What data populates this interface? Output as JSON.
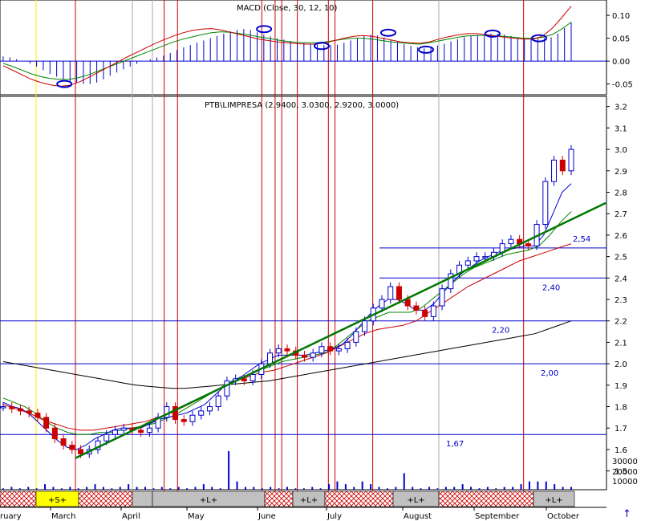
{
  "chart_data": [
    {
      "type": "bar",
      "panel": "macd",
      "title": "MACD (Close, 30, 12, 10)",
      "ylim": [
        -0.07,
        0.13
      ],
      "y_ticks": [
        0.1,
        0.05,
        0.0,
        -0.05
      ],
      "y_tick_labels": [
        "0.10",
        "0.05",
        "0.00",
        "-0.05"
      ],
      "series": [
        {
          "name": "MACD histogram",
          "color": "#0000cc"
        },
        {
          "name": "signal",
          "color": "#008800"
        },
        {
          "name": "MACD",
          "color": "#cc0000"
        }
      ],
      "histogram": [
        0.01,
        0.008,
        0.004,
        0.0,
        -0.005,
        -0.012,
        -0.02,
        -0.028,
        -0.034,
        -0.04,
        -0.045,
        -0.048,
        -0.05,
        -0.05,
        -0.047,
        -0.04,
        -0.032,
        -0.025,
        -0.018,
        -0.012,
        -0.006,
        0.0,
        0.004,
        0.008,
        0.012,
        0.018,
        0.024,
        0.03,
        0.035,
        0.04,
        0.045,
        0.05,
        0.055,
        0.06,
        0.065,
        0.068,
        0.07,
        0.068,
        0.063,
        0.058,
        0.054,
        0.05,
        0.047,
        0.044,
        0.042,
        0.04,
        0.038,
        0.036,
        0.035,
        0.035,
        0.036,
        0.04,
        0.045,
        0.05,
        0.055,
        0.058,
        0.056,
        0.052,
        0.047,
        0.042,
        0.037,
        0.033,
        0.03,
        0.028,
        0.03,
        0.034,
        0.038,
        0.043,
        0.048,
        0.052,
        0.055,
        0.057,
        0.058,
        0.06,
        0.06,
        0.058,
        0.055,
        0.052,
        0.05,
        0.05,
        0.05,
        0.05,
        0.052,
        0.06,
        0.072,
        0.085
      ],
      "signal": [
        -0.005,
        -0.012,
        -0.02,
        -0.028,
        -0.034,
        -0.038,
        -0.04,
        -0.04,
        -0.036,
        -0.03,
        -0.022,
        -0.014,
        -0.006,
        0.002,
        0.01,
        0.018,
        0.026,
        0.034,
        0.042,
        0.048,
        0.053,
        0.058,
        0.062,
        0.064,
        0.063,
        0.06,
        0.057,
        0.053,
        0.05,
        0.046,
        0.043,
        0.041,
        0.04,
        0.04,
        0.042,
        0.045,
        0.048,
        0.05,
        0.05,
        0.048,
        0.045,
        0.042,
        0.04,
        0.038,
        0.037,
        0.04,
        0.044,
        0.048,
        0.052,
        0.055,
        0.056,
        0.056,
        0.055,
        0.054,
        0.052,
        0.05,
        0.05,
        0.052,
        0.058,
        0.07,
        0.085
      ],
      "macd": [
        -0.01,
        -0.02,
        -0.03,
        -0.04,
        -0.047,
        -0.052,
        -0.055,
        -0.053,
        -0.046,
        -0.036,
        -0.025,
        -0.014,
        -0.003,
        0.008,
        0.018,
        0.028,
        0.038,
        0.047,
        0.055,
        0.062,
        0.067,
        0.07,
        0.071,
        0.068,
        0.063,
        0.058,
        0.053,
        0.048,
        0.045,
        0.042,
        0.04,
        0.038,
        0.037,
        0.037,
        0.04,
        0.045,
        0.05,
        0.054,
        0.056,
        0.054,
        0.05,
        0.046,
        0.042,
        0.04,
        0.039,
        0.042,
        0.048,
        0.053,
        0.057,
        0.06,
        0.06,
        0.058,
        0.055,
        0.052,
        0.05,
        0.048,
        0.048,
        0.055,
        0.072,
        0.095,
        0.12
      ],
      "marked_points": [
        {
          "date": "Mar 01",
          "y": -0.05
        },
        {
          "date": "May 30",
          "y": 0.07
        },
        {
          "date": "Jun 25",
          "y": 0.033
        },
        {
          "date": "Jul 25",
          "y": 0.062
        },
        {
          "date": "Aug 11",
          "y": 0.025
        },
        {
          "date": "Sep 10",
          "y": 0.06
        },
        {
          "date": "Oct 01",
          "y": 0.05
        }
      ]
    },
    {
      "type": "line",
      "panel": "price",
      "title": "PTB\\LIMPRESA (2.9400, 3.0300, 2.9200, 3.0000)",
      "ylim": [
        1.42,
        3.24
      ],
      "y_ticks": [
        3.2,
        3.1,
        3.0,
        2.9,
        2.8,
        2.7,
        2.6,
        2.5,
        2.4,
        2.3,
        2.2,
        2.1,
        2.0,
        1.9,
        1.8,
        1.7,
        1.6,
        1.5
      ],
      "y_tick_labels": [
        "3.2",
        "3.1",
        "3.0",
        "2.9",
        "2.8",
        "2.7",
        "2.6",
        "2.5",
        "2.4",
        "2.3",
        "2.2",
        "2.1",
        "2.0",
        "1.9",
        "1.8",
        "1.7",
        "1.6",
        "1.5"
      ],
      "x_labels": [
        "ruary",
        "March",
        "April",
        "May",
        "June",
        "July",
        "August",
        "September",
        "October"
      ],
      "close": [
        1.8,
        1.79,
        1.78,
        1.77,
        1.75,
        1.7,
        1.65,
        1.62,
        1.6,
        1.58,
        1.6,
        1.64,
        1.67,
        1.69,
        1.7,
        1.69,
        1.68,
        1.7,
        1.75,
        1.8,
        1.74,
        1.73,
        1.76,
        1.78,
        1.8,
        1.85,
        1.92,
        1.93,
        1.92,
        1.95,
        2.0,
        2.05,
        2.07,
        2.06,
        2.04,
        2.03,
        2.05,
        2.08,
        2.06,
        2.07,
        2.1,
        2.15,
        2.2,
        2.26,
        2.3,
        2.36,
        2.3,
        2.27,
        2.25,
        2.22,
        2.27,
        2.35,
        2.42,
        2.46,
        2.48,
        2.5,
        2.5,
        2.52,
        2.56,
        2.58,
        2.56,
        2.55,
        2.65,
        2.85,
        2.95,
        2.9,
        3.0
      ],
      "ma_fast": [
        1.82,
        1.8,
        1.79,
        1.76,
        1.72,
        1.68,
        1.64,
        1.61,
        1.6,
        1.62,
        1.65,
        1.67,
        1.69,
        1.7,
        1.7,
        1.7,
        1.72,
        1.74,
        1.75,
        1.76,
        1.77,
        1.79,
        1.81,
        1.85,
        1.89,
        1.92,
        1.94,
        1.97,
        2.0,
        2.02,
        2.04,
        2.04,
        2.04,
        2.04,
        2.05,
        2.06,
        2.07,
        2.09,
        2.13,
        2.18,
        2.23,
        2.27,
        2.3,
        2.3,
        2.28,
        2.25,
        2.25,
        2.28,
        2.33,
        2.38,
        2.42,
        2.45,
        2.48,
        2.5,
        2.52,
        2.53,
        2.54,
        2.55,
        2.55,
        2.6,
        2.7,
        2.8,
        2.84
      ],
      "ma_mid": [
        1.84,
        1.82,
        1.8,
        1.77,
        1.73,
        1.7,
        1.68,
        1.67,
        1.67,
        1.68,
        1.68,
        1.69,
        1.7,
        1.71,
        1.72,
        1.74,
        1.76,
        1.79,
        1.82,
        1.85,
        1.88,
        1.91,
        1.93,
        1.95,
        1.97,
        1.99,
        2.01,
        2.02,
        2.03,
        2.04,
        2.05,
        2.08,
        2.12,
        2.16,
        2.2,
        2.22,
        2.24,
        2.24,
        2.24,
        2.26,
        2.3,
        2.34,
        2.38,
        2.42,
        2.45,
        2.47,
        2.49,
        2.51,
        2.52,
        2.53,
        2.55,
        2.6,
        2.66,
        2.71
      ],
      "ma_slow": [
        1.81,
        1.79,
        1.77,
        1.74,
        1.72,
        1.7,
        1.69,
        1.69,
        1.7,
        1.71,
        1.72,
        1.73,
        1.75,
        1.77,
        1.8,
        1.83,
        1.86,
        1.89,
        1.92,
        1.94,
        1.96,
        1.97,
        1.99,
        2.01,
        2.03,
        2.05,
        2.08,
        2.11,
        2.14,
        2.16,
        2.17,
        2.18,
        2.2,
        2.24,
        2.28,
        2.32,
        2.36,
        2.39,
        2.42,
        2.45,
        2.48,
        2.5,
        2.52,
        2.54,
        2.56
      ],
      "ma_long": [
        2.01,
        2.0,
        1.99,
        1.98,
        1.97,
        1.96,
        1.95,
        1.94,
        1.93,
        1.92,
        1.91,
        1.9,
        1.895,
        1.89,
        1.885,
        1.885,
        1.89,
        1.895,
        1.9,
        1.905,
        1.91,
        1.915,
        1.92,
        1.93,
        1.94,
        1.95,
        1.96,
        1.97,
        1.98,
        1.99,
        2.0,
        2.01,
        2.02,
        2.03,
        2.04,
        2.05,
        2.06,
        2.07,
        2.08,
        2.09,
        2.1,
        2.11,
        2.12,
        2.13,
        2.14,
        2.16,
        2.18,
        2.2
      ],
      "trendline": {
        "from": {
          "date": "Mar 06",
          "y": 1.56
        },
        "to": {
          "date": "Oct 31",
          "y": 2.75
        },
        "color": "#007700"
      },
      "horizontal_levels": [
        {
          "value": 2.54,
          "label": "2,54"
        },
        {
          "value": 2.4,
          "label": "2,40"
        },
        {
          "value": 2.2,
          "label": "2,20"
        },
        {
          "value": 2.0,
          "label": "2,00"
        },
        {
          "value": 1.67,
          "label": "1,67"
        }
      ]
    },
    {
      "type": "bar",
      "panel": "volume",
      "y_tick_labels": [
        "30000",
        "20000",
        "10000"
      ],
      "values": [
        0.5,
        1,
        0.5,
        1,
        0.5,
        2,
        1,
        0.5,
        1,
        0.5,
        1,
        2,
        1,
        0.5,
        1,
        2,
        1,
        1,
        0.5,
        1,
        0.5,
        1,
        0.5,
        1,
        2,
        1,
        0.5,
        14,
        3,
        1,
        1,
        0.5,
        1,
        0.5,
        1,
        0.5,
        0.5,
        1,
        0.5,
        2,
        3,
        2,
        1,
        3,
        2,
        1,
        0.5,
        1,
        6,
        1,
        0.5,
        1,
        0.5,
        1,
        1,
        2,
        1,
        0.5,
        1,
        0.5,
        1,
        1,
        2,
        3,
        3,
        3,
        2,
        1,
        1
      ],
      "bands": [
        {
          "label": "",
          "fill": "hatch"
        },
        {
          "label": "+S+",
          "fill": "yellow"
        },
        {
          "label": "",
          "fill": "hatch"
        },
        {
          "label": "",
          "fill": "grey"
        },
        {
          "label": "+L+",
          "fill": "grey"
        },
        {
          "label": "",
          "fill": "hatch"
        },
        {
          "label": "+L+",
          "fill": "grey"
        },
        {
          "label": "",
          "fill": "hatch"
        },
        {
          "label": "+L+",
          "fill": "grey"
        },
        {
          "label": "",
          "fill": "hatch"
        },
        {
          "label": "+L+",
          "fill": "grey"
        }
      ]
    }
  ],
  "colors": {
    "histogram": "#0000cc",
    "signal": "#008800",
    "macd": "#cc0000",
    "price_up": "#0000cc",
    "price_down": "#cc0000",
    "level": "#0000cc",
    "trend": "#007700",
    "long_ma": "#000000",
    "event_line": "#cc0000",
    "yellow_line": "#ffee00",
    "grey_line": "#aaaaaa"
  },
  "event_lines_dates": [
    "Mar 06",
    "Apr 15",
    "Apr 21",
    "May 29",
    "Jun 04",
    "Jun 07",
    "Jun 14",
    "Jun 28",
    "Jul 01",
    "Jul 18",
    "Sep 24"
  ],
  "corner_arrow": "↑"
}
